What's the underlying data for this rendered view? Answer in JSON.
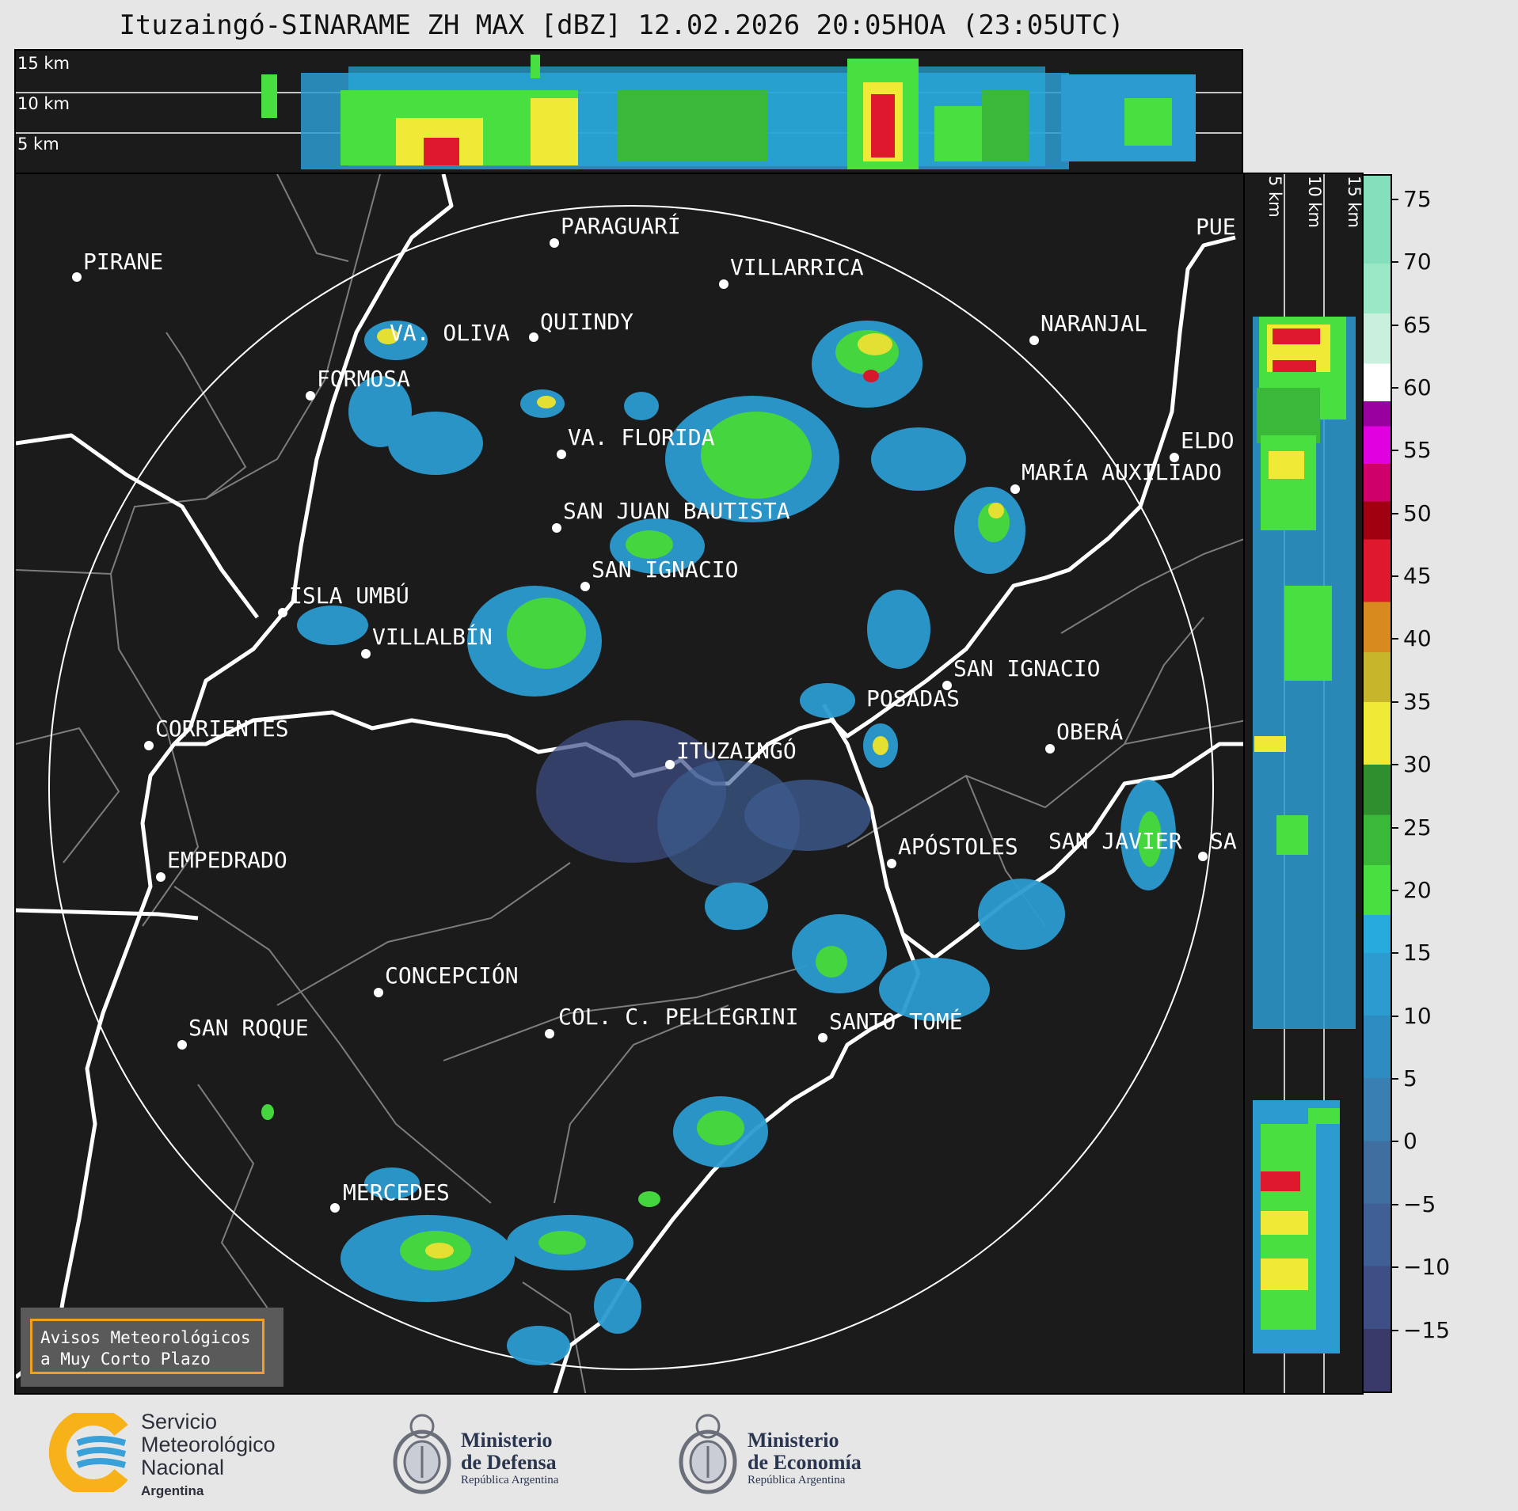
{
  "title": "Ituzaingó-SINARAME ZH MAX [dBZ] 12.02.2026 20:05HOA (23:05UTC)",
  "altitude_labels": [
    "15 km",
    "10 km",
    "5 km"
  ],
  "cities": [
    {
      "name": "PIRANE"
    },
    {
      "name": "PARAGUARÍ"
    },
    {
      "name": "VILLARRICA"
    },
    {
      "name": "VA. OLIVA"
    },
    {
      "name": "QUIINDY"
    },
    {
      "name": "NARANJAL"
    },
    {
      "name": "FORMOSA"
    },
    {
      "name": "PUE"
    },
    {
      "name": "VA. FLORIDA"
    },
    {
      "name": "ELDO"
    },
    {
      "name": "MARÍA AUXILIADO"
    },
    {
      "name": "SAN JUAN BAUTISTA"
    },
    {
      "name": "SAN IGNACIO"
    },
    {
      "name": "ISLA UMBÚ"
    },
    {
      "name": "VILLALBÍN"
    },
    {
      "name": "SAN IGNACIO"
    },
    {
      "name": "POSADAS"
    },
    {
      "name": "CORRIENTES"
    },
    {
      "name": "ITUZAINGÓ"
    },
    {
      "name": "OBERÁ"
    },
    {
      "name": "APÓSTOLES"
    },
    {
      "name": "SAN JAVIER"
    },
    {
      "name": "SA"
    },
    {
      "name": "EMPEDRADO"
    },
    {
      "name": "CONCEPCIÓN"
    },
    {
      "name": "COL. C. PELLEGRINI"
    },
    {
      "name": "SANTO TOMÉ"
    },
    {
      "name": "SAN ROQUE"
    },
    {
      "name": "MERCEDES"
    }
  ],
  "colorbar": {
    "ticks": [
      "75",
      "70",
      "65",
      "60",
      "55",
      "50",
      "45",
      "40",
      "35",
      "30",
      "25",
      "20",
      "15",
      "10",
      "5",
      "0",
      "−5",
      "−10",
      "−15"
    ],
    "range": [
      -20,
      77
    ],
    "stops": [
      {
        "from": -20,
        "color": "#3a3a6a"
      },
      {
        "from": -15,
        "color": "#3d4f85"
      },
      {
        "from": -10,
        "color": "#3f5f95"
      },
      {
        "from": -5,
        "color": "#3e6fa0"
      },
      {
        "from": 0,
        "color": "#3a7fb2"
      },
      {
        "from": 5,
        "color": "#2f8cc0"
      },
      {
        "from": 10,
        "color": "#2b9bd0"
      },
      {
        "from": 15,
        "color": "#27abdc"
      },
      {
        "from": 18,
        "color": "#48e040"
      },
      {
        "from": 22,
        "color": "#3ab838"
      },
      {
        "from": 26,
        "color": "#2f8f2e"
      },
      {
        "from": 30,
        "color": "#efea35"
      },
      {
        "from": 35,
        "color": "#c7b52a"
      },
      {
        "from": 39,
        "color": "#d98a1e"
      },
      {
        "from": 43,
        "color": "#e0182e"
      },
      {
        "from": 48,
        "color": "#a00010"
      },
      {
        "from": 51,
        "color": "#d0006a"
      },
      {
        "from": 54,
        "color": "#e000e0"
      },
      {
        "from": 57,
        "color": "#9a00a0"
      },
      {
        "from": 59,
        "color": "#ffffff"
      },
      {
        "from": 62,
        "color": "#c8f0dc"
      },
      {
        "from": 66,
        "color": "#9be8c6"
      },
      {
        "from": 70,
        "color": "#84dfbc"
      }
    ]
  },
  "avisos": {
    "line1": "Avisos Meteorológicos",
    "line2": "a Muy Corto Plazo"
  },
  "logos": {
    "smn": {
      "line1": "Servicio",
      "line2": "Meteorológico",
      "line3": "Nacional",
      "country": "Argentina"
    },
    "defensa": {
      "line1": "Ministerio",
      "line2": "de Defensa",
      "sub": "República Argentina"
    },
    "economia": {
      "line1": "Ministerio",
      "line2": "de Economía",
      "sub": "República Argentina"
    }
  }
}
